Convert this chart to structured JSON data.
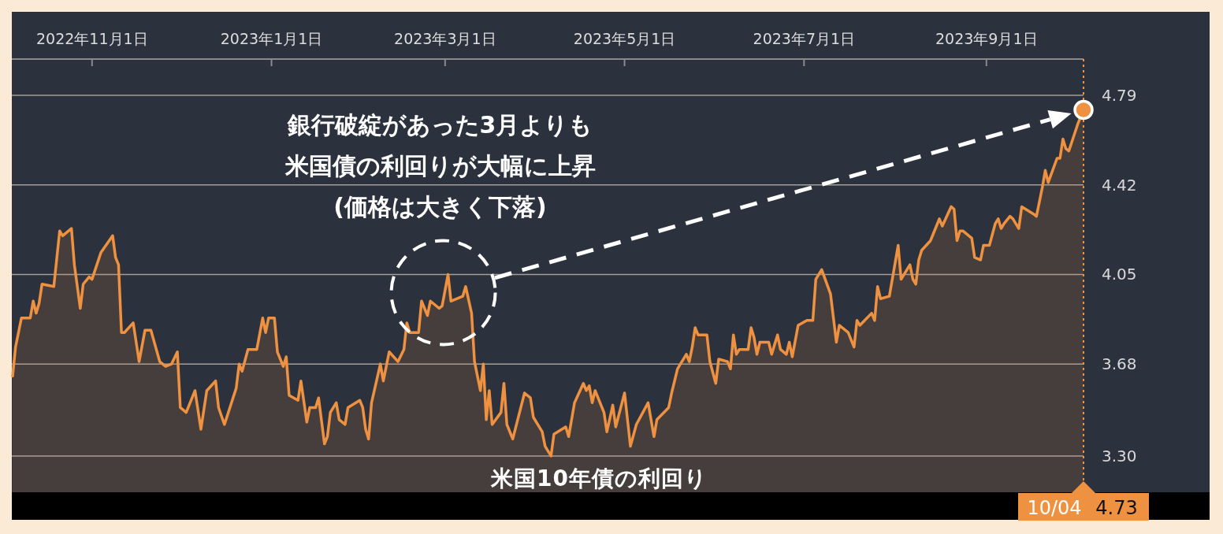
{
  "chart_data": {
    "type": "area",
    "x": [
      "2022-10-05",
      "2022-10-06",
      "2022-10-08",
      "2022-10-11",
      "2022-10-12",
      "2022-10-13",
      "2022-10-14",
      "2022-10-15",
      "2022-10-19",
      "2022-10-21",
      "2022-10-22",
      "2022-10-25",
      "2022-10-26",
      "2022-10-28",
      "2022-10-29",
      "2022-10-31",
      "2022-11-01",
      "2022-11-04",
      "2022-11-08",
      "2022-11-09",
      "2022-11-10",
      "2022-11-11",
      "2022-11-12",
      "2022-11-15",
      "2022-11-17",
      "2022-11-19",
      "2022-11-21",
      "2022-11-24",
      "2022-11-26",
      "2022-11-28",
      "2022-11-30",
      "2022-12-01",
      "2022-12-03",
      "2022-12-06",
      "2022-12-08",
      "2022-12-10",
      "2022-12-13",
      "2022-12-14",
      "2022-12-16",
      "2022-12-20",
      "2022-12-21",
      "2022-12-22",
      "2022-12-24",
      "2022-12-27",
      "2022-12-29",
      "2022-12-30",
      "2022-12-31",
      "2023-01-02",
      "2023-01-03",
      "2023-01-05",
      "2023-01-06",
      "2023-01-07",
      "2023-01-10",
      "2023-01-11",
      "2023-01-13",
      "2023-01-14",
      "2023-01-16",
      "2023-01-17",
      "2023-01-19",
      "2023-01-20",
      "2023-01-21",
      "2023-01-23",
      "2023-01-24",
      "2023-01-26",
      "2023-01-27",
      "2023-01-31",
      "2023-02-01",
      "2023-02-02",
      "2023-02-03",
      "2023-02-04",
      "2023-02-07",
      "2023-02-08",
      "2023-02-10",
      "2023-02-13",
      "2023-02-15",
      "2023-02-16",
      "2023-02-17",
      "2023-02-20",
      "2023-02-21",
      "2023-02-23",
      "2023-02-24",
      "2023-02-27",
      "2023-02-28",
      "2023-03-02",
      "2023-03-03",
      "2023-03-07",
      "2023-03-08",
      "2023-03-10",
      "2023-03-11",
      "2023-03-13",
      "2023-03-14",
      "2023-03-15",
      "2023-03-16",
      "2023-03-17",
      "2023-03-20",
      "2023-03-21",
      "2023-03-22",
      "2023-03-24",
      "2023-03-28",
      "2023-03-30",
      "2023-03-31",
      "2023-04-03",
      "2023-04-04",
      "2023-04-06",
      "2023-04-07",
      "2023-04-11",
      "2023-04-12",
      "2023-04-14",
      "2023-04-17",
      "2023-04-18",
      "2023-04-19",
      "2023-04-20",
      "2023-04-21",
      "2023-04-24",
      "2023-04-25",
      "2023-04-27",
      "2023-04-28",
      "2023-05-01",
      "2023-05-03",
      "2023-05-05",
      "2023-05-09",
      "2023-05-11",
      "2023-05-12",
      "2023-05-16",
      "2023-05-17",
      "2023-05-19",
      "2023-05-20",
      "2023-05-22",
      "2023-05-23",
      "2023-05-24",
      "2023-05-25",
      "2023-05-26",
      "2023-05-29",
      "2023-05-30",
      "2023-06-01",
      "2023-06-02",
      "2023-06-05",
      "2023-06-06",
      "2023-06-07",
      "2023-06-08",
      "2023-06-09",
      "2023-06-12",
      "2023-06-13",
      "2023-06-14",
      "2023-06-15",
      "2023-06-16",
      "2023-06-19",
      "2023-06-20",
      "2023-06-22",
      "2023-06-23",
      "2023-06-25",
      "2023-06-26",
      "2023-06-27",
      "2023-06-29",
      "2023-07-02",
      "2023-07-04",
      "2023-07-05",
      "2023-07-07",
      "2023-07-10",
      "2023-07-12",
      "2023-07-13",
      "2023-07-16",
      "2023-07-18",
      "2023-07-19",
      "2023-07-20",
      "2023-07-24",
      "2023-07-25",
      "2023-07-26",
      "2023-07-27",
      "2023-07-30",
      "2023-08-02",
      "2023-08-03",
      "2023-08-06",
      "2023-08-07",
      "2023-08-08",
      "2023-08-09",
      "2023-08-10",
      "2023-08-13",
      "2023-08-14",
      "2023-08-16",
      "2023-08-17",
      "2023-08-20",
      "2023-08-21",
      "2023-08-22",
      "2023-08-23",
      "2023-08-24",
      "2023-08-27",
      "2023-08-28",
      "2023-08-30",
      "2023-08-31",
      "2023-09-02",
      "2023-09-04",
      "2023-09-05",
      "2023-09-06",
      "2023-09-07",
      "2023-09-09",
      "2023-09-10",
      "2023-09-12",
      "2023-09-13",
      "2023-09-17",
      "2023-09-18",
      "2023-09-20",
      "2023-09-21",
      "2023-09-22",
      "2023-09-25",
      "2023-09-26",
      "2023-09-27",
      "2023-09-28",
      "2023-09-29",
      "2023-10-02",
      "2023-10-04"
    ],
    "series": [
      {
        "name": "米国10年債の利回り",
        "color": "#ee9140",
        "values": [
          3.63,
          3.75,
          3.87,
          3.87,
          3.94,
          3.89,
          3.93,
          4.01,
          4.0,
          4.23,
          4.21,
          4.24,
          4.09,
          3.91,
          4.01,
          4.04,
          4.03,
          4.14,
          4.21,
          4.12,
          4.09,
          3.81,
          3.81,
          3.85,
          3.69,
          3.82,
          3.82,
          3.69,
          3.67,
          3.68,
          3.73,
          3.5,
          3.48,
          3.57,
          3.41,
          3.57,
          3.61,
          3.5,
          3.43,
          3.58,
          3.68,
          3.65,
          3.74,
          3.74,
          3.87,
          3.81,
          3.87,
          3.87,
          3.73,
          3.67,
          3.71,
          3.55,
          3.53,
          3.61,
          3.44,
          3.5,
          3.5,
          3.54,
          3.35,
          3.38,
          3.48,
          3.52,
          3.45,
          3.43,
          3.5,
          3.53,
          3.5,
          3.41,
          3.37,
          3.52,
          3.68,
          3.61,
          3.73,
          3.69,
          3.74,
          3.85,
          3.81,
          3.81,
          3.94,
          3.88,
          3.94,
          3.91,
          3.92,
          4.05,
          3.94,
          3.96,
          4.0,
          3.89,
          3.69,
          3.57,
          3.68,
          3.45,
          3.57,
          3.43,
          3.48,
          3.6,
          3.43,
          3.37,
          3.56,
          3.54,
          3.46,
          3.4,
          3.34,
          3.3,
          3.39,
          3.42,
          3.38,
          3.52,
          3.6,
          3.57,
          3.59,
          3.52,
          3.57,
          3.48,
          3.4,
          3.51,
          3.42,
          3.56,
          3.34,
          3.43,
          3.52,
          3.38,
          3.45,
          3.5,
          3.56,
          3.66,
          3.68,
          3.72,
          3.69,
          3.75,
          3.83,
          3.8,
          3.8,
          3.69,
          3.6,
          3.7,
          3.69,
          3.66,
          3.8,
          3.72,
          3.74,
          3.74,
          3.83,
          3.79,
          3.72,
          3.77,
          3.77,
          3.72,
          3.8,
          3.74,
          3.72,
          3.77,
          3.71,
          3.84,
          3.86,
          3.86,
          4.03,
          4.07,
          3.97,
          3.77,
          3.84,
          3.81,
          3.75,
          3.86,
          3.84,
          3.89,
          3.86,
          4.0,
          3.95,
          3.96,
          4.17,
          4.03,
          4.09,
          4.03,
          4.01,
          4.11,
          4.15,
          4.19,
          4.22,
          4.28,
          4.25,
          4.33,
          4.32,
          4.19,
          4.23,
          4.23,
          4.2,
          4.12,
          4.11,
          4.17,
          4.17,
          4.26,
          4.28,
          4.24,
          4.26,
          4.29,
          4.28,
          4.24,
          4.33,
          4.3,
          4.29,
          4.41,
          4.48,
          4.43,
          4.53,
          4.53,
          4.61,
          4.57,
          4.56,
          4.67,
          4.73
        ]
      }
    ],
    "xlim": [
      "2022-10-05",
      "2023-10-04"
    ],
    "xticks": [
      {
        "value": "2022-11-01",
        "label": "2022年11月1日"
      },
      {
        "value": "2023-01-01",
        "label": "2023年1月1日"
      },
      {
        "value": "2023-03-01",
        "label": "2023年3月1日"
      },
      {
        "value": "2023-05-01",
        "label": "2023年5月1日"
      },
      {
        "value": "2023-07-01",
        "label": "2023年7月1日"
      },
      {
        "value": "2023-09-01",
        "label": "2023年9月1日"
      }
    ],
    "ylim": [
      3.15,
      4.94
    ],
    "yticks": [
      {
        "value": 3.3,
        "label": "3.30"
      },
      3.68,
      4.05,
      4.42,
      4.79
    ],
    "grid": "y",
    "ref_lines": [
      {
        "axis": "x",
        "value": "2023-10-04",
        "color": "#ee9140",
        "line_style": "dotted"
      }
    ],
    "annotations": [
      "銀行破綻があった3月よりも",
      "米国債の利回りが大幅に上昇",
      "(価格は大きく下落)",
      "10/04",
      "4.73"
    ]
  }
}
